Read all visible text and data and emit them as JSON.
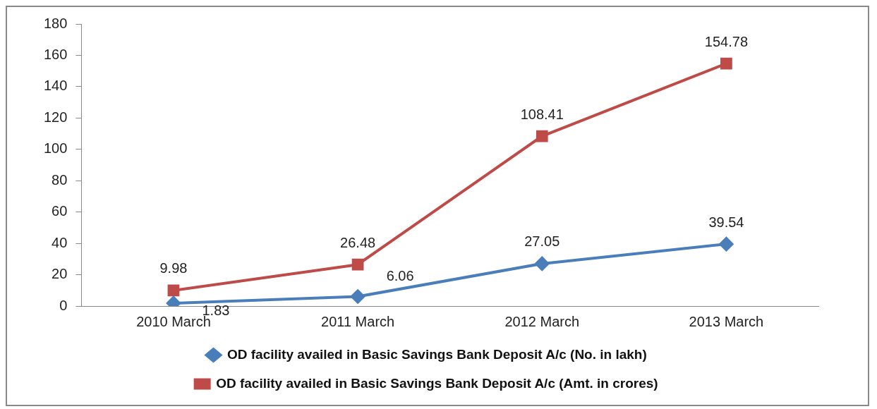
{
  "chart_data": {
    "type": "line",
    "categories": [
      "2010 March",
      "2011 March",
      "2012 March",
      "2013 March"
    ],
    "series": [
      {
        "name": "OD facility availed in Basic Savings Bank Deposit A/c (No. in lakh)",
        "color": "#4a7ebb",
        "values": [
          1.83,
          6.06,
          27.05,
          39.54
        ],
        "marker": "diamond"
      },
      {
        "name": "OD facility availed in Basic Savings Bank Deposit A/c (Amt. in crores)",
        "color": "#be4b48",
        "values": [
          9.98,
          26.48,
          108.41,
          154.78
        ],
        "marker": "square"
      }
    ],
    "ylim": [
      0,
      180
    ],
    "yticks": [
      0,
      20,
      40,
      60,
      80,
      100,
      120,
      140,
      160,
      180
    ],
    "grid": false,
    "legend": "bottom",
    "data_labels": true
  }
}
